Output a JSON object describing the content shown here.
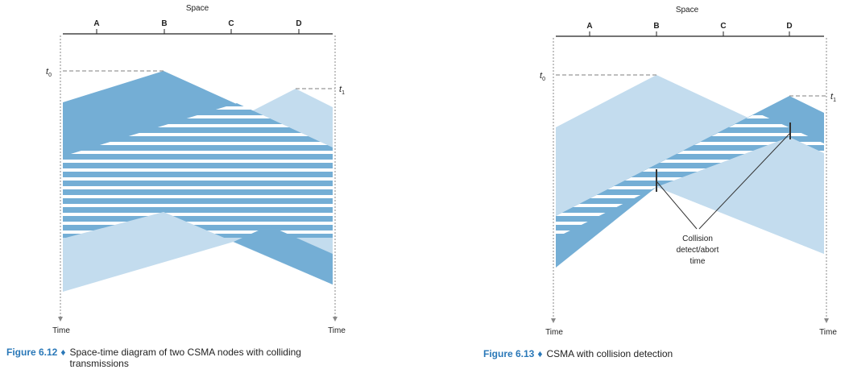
{
  "colors": {
    "dark": "#74aed5",
    "light": "#c3dcee",
    "axis": "#222222",
    "dashed": "#999999",
    "accent": "#2a78b8"
  },
  "diagram1": {
    "space_label": "Space",
    "nodes": [
      "A",
      "B",
      "C",
      "D"
    ],
    "t0_label": {
      "sym": "t",
      "sub": "0"
    },
    "t1_label": {
      "sym": "t",
      "sub": "1"
    },
    "time_left": "Time",
    "time_right": "Time",
    "caption": {
      "figure": "Figure 6.12",
      "separator": "♦",
      "line1": "Space-time diagram of two CSMA nodes with colliding",
      "line2": "transmissions"
    }
  },
  "diagram2": {
    "space_label": "Space",
    "nodes": [
      "A",
      "B",
      "C",
      "D"
    ],
    "t0_label": {
      "sym": "t",
      "sub": "0"
    },
    "t1_label": {
      "sym": "t",
      "sub": "1"
    },
    "time_left": "Time",
    "time_right": "Time",
    "annotation": [
      "Collision",
      "detect/abort",
      "time"
    ],
    "caption": {
      "figure": "Figure 6.13",
      "separator": "♦",
      "line1": "CSMA with collision detection"
    }
  }
}
